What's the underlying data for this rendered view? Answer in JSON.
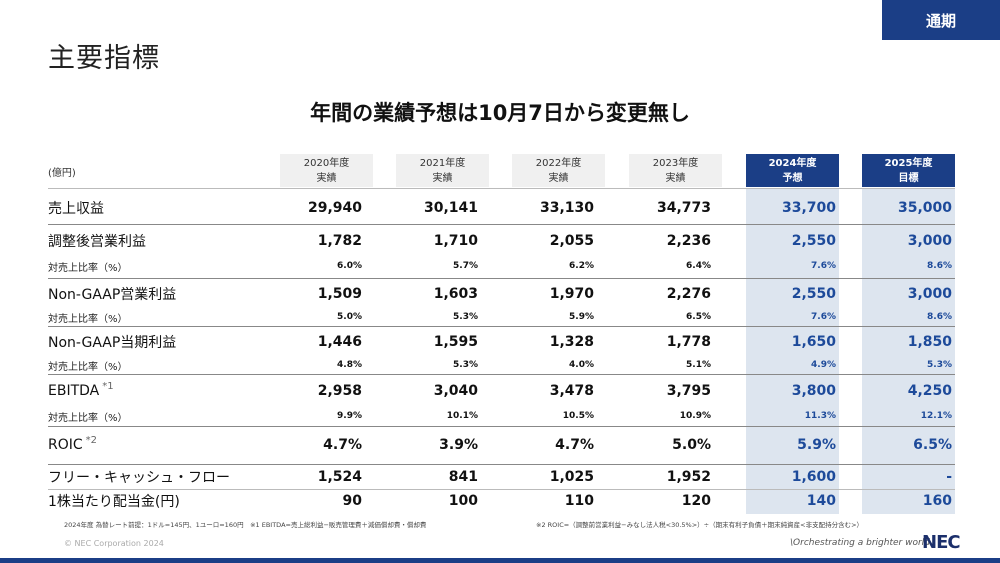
{
  "tag": "通期",
  "page_title": "主要指標",
  "headline": "年間の業績予想は10月7日から変更無し",
  "unit": "(億円)",
  "columns": [
    {
      "year": "2020年度",
      "type": "実績"
    },
    {
      "year": "2021年度",
      "type": "実績"
    },
    {
      "year": "2022年度",
      "type": "実績"
    },
    {
      "year": "2023年度",
      "type": "実績"
    },
    {
      "year": "2024年度",
      "type": "予想"
    },
    {
      "year": "2025年度",
      "type": "目標"
    }
  ],
  "rows": [
    {
      "label": "売上収益",
      "kind": "main",
      "note": "",
      "values": [
        "29,940",
        "30,141",
        "33,130",
        "34,773",
        "33,700",
        "35,000"
      ]
    },
    {
      "label": "調整後営業利益",
      "kind": "main",
      "note": "",
      "values": [
        "1,782",
        "1,710",
        "2,055",
        "2,236",
        "2,550",
        "3,000"
      ]
    },
    {
      "label": "対売上比率（%）",
      "kind": "sub",
      "note": "",
      "values": [
        "6.0%",
        "5.7%",
        "6.2%",
        "6.4%",
        "7.6%",
        "8.6%"
      ]
    },
    {
      "label": "Non-GAAP営業利益",
      "kind": "main",
      "note": "",
      "values": [
        "1,509",
        "1,603",
        "1,970",
        "2,276",
        "2,550",
        "3,000"
      ]
    },
    {
      "label": "対売上比率（%）",
      "kind": "sub",
      "note": "",
      "values": [
        "5.0%",
        "5.3%",
        "5.9%",
        "6.5%",
        "7.6%",
        "8.6%"
      ]
    },
    {
      "label": "Non-GAAP当期利益",
      "kind": "main",
      "note": "",
      "values": [
        "1,446",
        "1,595",
        "1,328",
        "1,778",
        "1,650",
        "1,850"
      ]
    },
    {
      "label": "対売上比率（%）",
      "kind": "sub",
      "note": "",
      "values": [
        "4.8%",
        "5.3%",
        "4.0%",
        "5.1%",
        "4.9%",
        "5.3%"
      ]
    },
    {
      "label": "EBITDA",
      "kind": "main",
      "note": "*1",
      "values": [
        "2,958",
        "3,040",
        "3,478",
        "3,795",
        "3,800",
        "4,250"
      ]
    },
    {
      "label": "対売上比率（%）",
      "kind": "sub",
      "note": "",
      "values": [
        "9.9%",
        "10.1%",
        "10.5%",
        "10.9%",
        "11.3%",
        "12.1%"
      ]
    },
    {
      "label": "ROIC",
      "kind": "main",
      "note": "*2",
      "values": [
        "4.7%",
        "3.9%",
        "4.7%",
        "5.0%",
        "5.9%",
        "6.5%"
      ]
    },
    {
      "label": "フリー・キャッシュ・フロー",
      "kind": "main",
      "note": "",
      "values": [
        "1,524",
        "841",
        "1,025",
        "1,952",
        "1,600",
        "-"
      ]
    },
    {
      "label": "1株当たり配当金(円)",
      "kind": "main",
      "note": "",
      "values": [
        "90",
        "100",
        "110",
        "120",
        "140",
        "160"
      ]
    }
  ],
  "footnotes": {
    "left": "2024年度 為替レート前提：1ドル=145円、1ユーロ=160円　※1 EBITDA=売上総利益−販売管理費＋減価償却費・償却費",
    "right": "※2 ROIC=（調整前営業利益−みなし法人税<30.5%>）÷（期末有利子負債＋期末純資産<非支配持分含む>）"
  },
  "copyright": "© NEC Corporation 2024",
  "tagline": "\\Orchestrating a brighter world",
  "logo": "NEC"
}
